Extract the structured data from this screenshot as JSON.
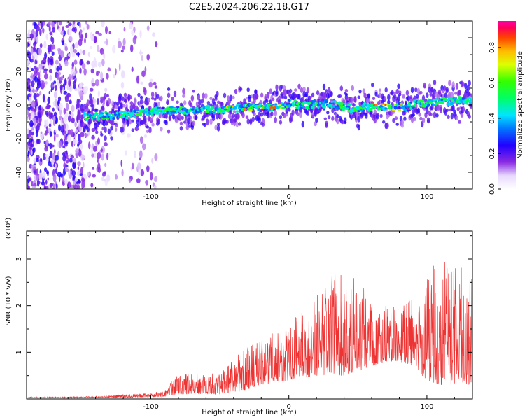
{
  "figure": {
    "title": "C2E5.2024.206.22.18.G17"
  },
  "chart_data": [
    {
      "type": "heatmap",
      "title": "C2E5.2024.206.22.18.G17",
      "xlabel": "Height of straight line (km)",
      "ylabel": "Frequency (Hz)",
      "xlim": [
        -190,
        133
      ],
      "ylim": [
        -50,
        50
      ],
      "xticks": [
        -100,
        0,
        100
      ],
      "yticks": [
        -40,
        -20,
        0,
        20,
        40
      ],
      "colorbar": {
        "label": "Normalized spectral amplitude",
        "range": [
          0,
          0.95
        ],
        "ticks": [
          0.0,
          0.2,
          0.4,
          0.6,
          0.8
        ]
      },
      "ridge": {
        "description_note": "",
        "x": [
          -150,
          -120,
          -100,
          -80,
          -60,
          -40,
          -20,
          -10,
          0,
          10,
          30,
          50,
          53,
          70,
          85,
          95,
          110,
          133
        ],
        "y": [
          -7,
          -6,
          -4,
          -3,
          -3,
          -2,
          -1,
          -1,
          1,
          0,
          1,
          -3,
          -1,
          -1,
          -1,
          1,
          2,
          3
        ]
      }
    },
    {
      "type": "line",
      "xlabel": "Height of straight line (km)",
      "ylabel": "SNR (10 * v/v)",
      "y_multiplier": "(x10⁴)",
      "xlim": [
        -190,
        133
      ],
      "ylim": [
        0,
        3.6
      ],
      "xticks": [
        -100,
        0,
        100
      ],
      "yticks": [
        1,
        2,
        3
      ],
      "series": [
        {
          "color": "#ee3333",
          "envelope_x": [
            -190,
            -150,
            -120,
            -100,
            -90,
            -80,
            -70,
            -60,
            -50,
            -40,
            -30,
            -20,
            -10,
            0,
            10,
            20,
            30,
            40,
            50,
            55,
            60,
            70,
            80,
            90,
            100,
            110,
            120,
            133
          ],
          "envelope_y": [
            0.04,
            0.05,
            0.1,
            0.12,
            0.2,
            0.55,
            0.55,
            0.5,
            0.6,
            0.9,
            1.1,
            1.3,
            1.5,
            1.6,
            1.9,
            2.2,
            2.6,
            3.0,
            2.6,
            2.4,
            2.2,
            2.0,
            2.0,
            2.2,
            2.8,
            3.0,
            3.1,
            3.0
          ],
          "base_y": [
            0.02,
            0.02,
            0.03,
            0.04,
            0.05,
            0.1,
            0.1,
            0.1,
            0.1,
            0.15,
            0.2,
            0.3,
            0.35,
            0.4,
            0.45,
            0.5,
            0.5,
            0.5,
            0.6,
            0.65,
            0.7,
            0.8,
            0.8,
            0.7,
            0.4,
            0.3,
            0.3,
            0.3
          ]
        }
      ]
    }
  ]
}
